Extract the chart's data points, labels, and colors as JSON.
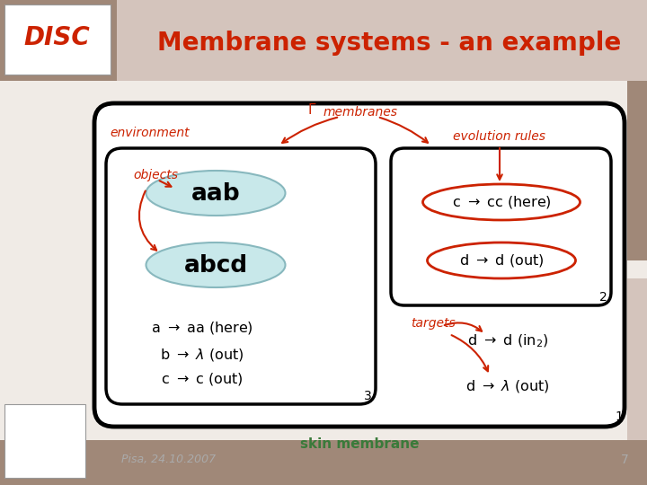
{
  "title": "Membrane systems - an example",
  "title_color": "#cc2200",
  "bg_color": "#a08878",
  "header_light_color": "#d4c4bc",
  "main_bg_color": "#f0ebe6",
  "skin_label": "skin membrane",
  "skin_label_color": "#3a7a3a",
  "footer_text": "Pisa, 24.10.2007",
  "footer_number": "7",
  "environment_label": "environment",
  "membranes_label": "membranes",
  "objects_label": "objects",
  "evolution_rules_label": "evolution rules",
  "targets_label": "targets",
  "label_color": "#cc2200",
  "objects_text": "aab",
  "objects2_text": "abcd",
  "number_1": "1",
  "number_2": "2",
  "number_3": "3",
  "ellipse_fill": "#c8e8ea",
  "ellipse_edge": "#88b8be"
}
